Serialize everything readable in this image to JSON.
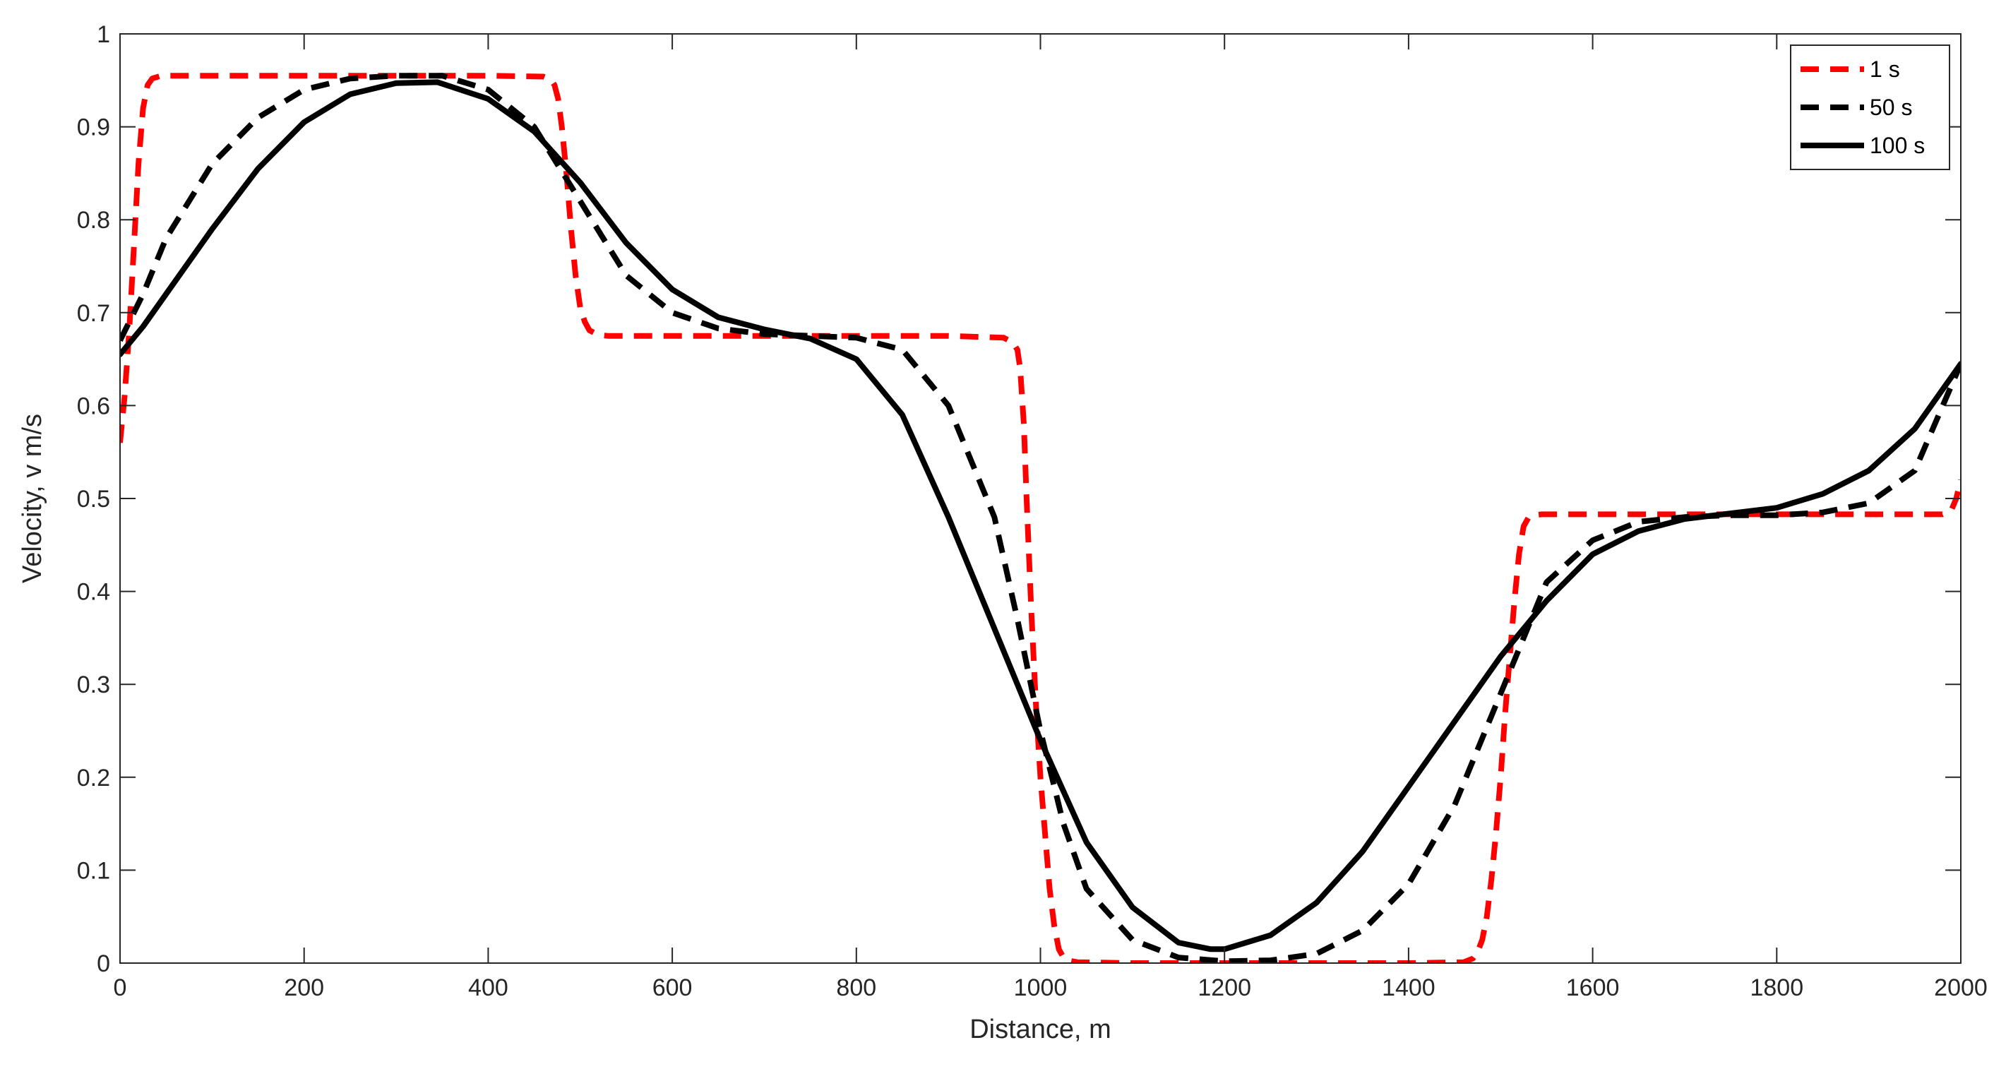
{
  "chart_data": {
    "type": "line",
    "title": "",
    "xlabel": "Distance, m",
    "ylabel": "Velocity, v m/s",
    "xlim": [
      0,
      2000
    ],
    "ylim": [
      0,
      1
    ],
    "xticks": [
      0,
      200,
      400,
      600,
      800,
      1000,
      1200,
      1400,
      1600,
      1800,
      2000
    ],
    "yticks": [
      0,
      0.1,
      0.2,
      0.3,
      0.4,
      0.5,
      0.6,
      0.7,
      0.8,
      0.9,
      1
    ],
    "xtick_labels": [
      "0",
      "200",
      "400",
      "600",
      "800",
      "1000",
      "1200",
      "1400",
      "1600",
      "1800",
      "2000"
    ],
    "ytick_labels": [
      "0",
      "0.1",
      "0.2",
      "0.3",
      "0.4",
      "0.5",
      "0.6",
      "0.7",
      "0.8",
      "0.9",
      "1"
    ],
    "grid": false,
    "legend_position": "top-right",
    "series": [
      {
        "name": "1 s",
        "color": "#ff0000",
        "style": "dashed",
        "x": [
          0,
          5,
          10,
          15,
          20,
          25,
          30,
          35,
          45,
          60,
          100,
          200,
          300,
          400,
          460,
          468,
          472,
          476,
          480,
          485,
          490,
          495,
          500,
          505,
          510,
          520,
          530,
          600,
          700,
          800,
          900,
          960,
          970,
          975,
          978,
          982,
          985,
          990,
          995,
          1000,
          1005,
          1010,
          1015,
          1020,
          1025,
          1030,
          1040,
          1100,
          1200,
          1300,
          1400,
          1460,
          1470,
          1475,
          1480,
          1485,
          1490,
          1495,
          1500,
          1505,
          1510,
          1515,
          1520,
          1525,
          1530,
          1535,
          1545,
          1600,
          1700,
          1800,
          1900,
          1980,
          1990,
          1995,
          2000
        ],
        "y": [
          0.56,
          0.61,
          0.68,
          0.77,
          0.86,
          0.92,
          0.945,
          0.952,
          0.955,
          0.955,
          0.955,
          0.955,
          0.955,
          0.955,
          0.954,
          0.951,
          0.945,
          0.93,
          0.9,
          0.85,
          0.79,
          0.74,
          0.705,
          0.69,
          0.681,
          0.676,
          0.675,
          0.675,
          0.675,
          0.675,
          0.675,
          0.673,
          0.668,
          0.66,
          0.64,
          0.58,
          0.5,
          0.38,
          0.28,
          0.2,
          0.14,
          0.08,
          0.04,
          0.015,
          0.006,
          0.003,
          0.001,
          0.0,
          0.0,
          0.0,
          0.0,
          0.001,
          0.005,
          0.012,
          0.025,
          0.05,
          0.09,
          0.14,
          0.2,
          0.27,
          0.33,
          0.39,
          0.44,
          0.47,
          0.479,
          0.482,
          0.483,
          0.483,
          0.483,
          0.483,
          0.483,
          0.483,
          0.488,
          0.5,
          0.52
        ]
      },
      {
        "name": "50 s",
        "color": "#000000",
        "style": "dashed",
        "x": [
          0,
          25,
          50,
          100,
          150,
          200,
          250,
          300,
          350,
          400,
          450,
          500,
          550,
          600,
          650,
          700,
          750,
          800,
          850,
          900,
          950,
          975,
          1000,
          1025,
          1050,
          1100,
          1150,
          1200,
          1250,
          1300,
          1350,
          1400,
          1450,
          1500,
          1550,
          1600,
          1650,
          1700,
          1750,
          1800,
          1850,
          1900,
          1950,
          2000
        ],
        "y": [
          0.67,
          0.72,
          0.78,
          0.86,
          0.91,
          0.94,
          0.952,
          0.955,
          0.955,
          0.94,
          0.9,
          0.82,
          0.74,
          0.7,
          0.683,
          0.677,
          0.675,
          0.673,
          0.66,
          0.6,
          0.48,
          0.37,
          0.25,
          0.15,
          0.08,
          0.025,
          0.006,
          0.002,
          0.003,
          0.01,
          0.035,
          0.085,
          0.17,
          0.29,
          0.41,
          0.455,
          0.475,
          0.48,
          0.482,
          0.482,
          0.485,
          0.495,
          0.53,
          0.645
        ]
      },
      {
        "name": "100 s",
        "color": "#000000",
        "style": "solid",
        "x": [
          0,
          25,
          50,
          100,
          150,
          200,
          250,
          300,
          345,
          400,
          450,
          500,
          550,
          600,
          650,
          700,
          750,
          800,
          850,
          900,
          950,
          1000,
          1050,
          1100,
          1150,
          1185,
          1200,
          1250,
          1300,
          1350,
          1400,
          1450,
          1500,
          1550,
          1600,
          1650,
          1700,
          1750,
          1800,
          1850,
          1900,
          1950,
          2000
        ],
        "y": [
          0.655,
          0.685,
          0.72,
          0.79,
          0.855,
          0.905,
          0.935,
          0.947,
          0.948,
          0.93,
          0.895,
          0.84,
          0.775,
          0.725,
          0.695,
          0.682,
          0.672,
          0.65,
          0.59,
          0.48,
          0.36,
          0.24,
          0.13,
          0.06,
          0.022,
          0.015,
          0.015,
          0.03,
          0.065,
          0.12,
          0.19,
          0.26,
          0.33,
          0.39,
          0.44,
          0.465,
          0.478,
          0.484,
          0.49,
          0.505,
          0.53,
          0.575,
          0.645
        ]
      }
    ]
  }
}
